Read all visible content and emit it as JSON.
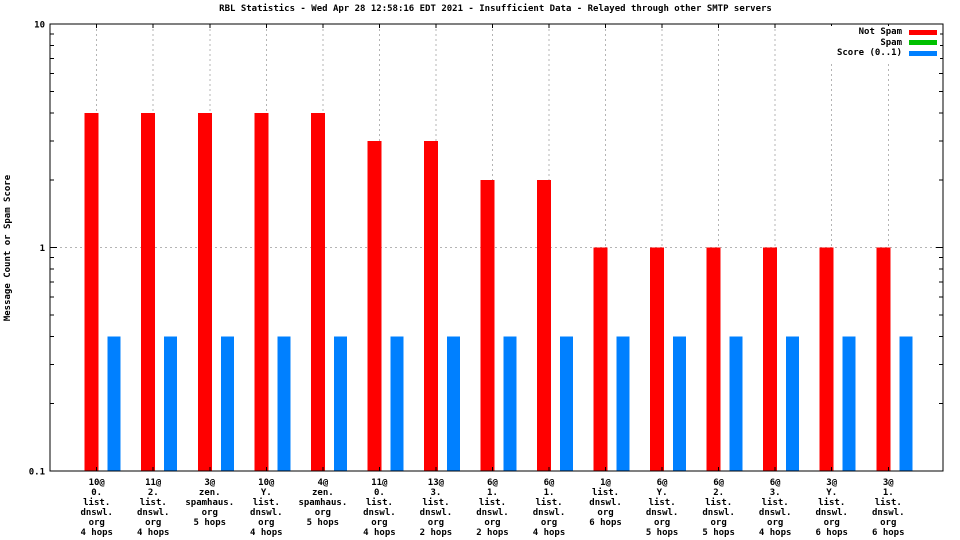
{
  "chart_data": {
    "type": "bar",
    "title": "RBL Statistics - Wed Apr 28 12:58:16 EDT 2021 - Insufficient Data - Relayed through other SMTP servers",
    "xlabel": "",
    "ylabel": "Message Count or Spam Score",
    "y_scale": "log",
    "ylim": [
      0.1,
      10
    ],
    "yticks": [
      0.1,
      1,
      10
    ],
    "ytick_labels": [
      "0.1",
      "1",
      "10"
    ],
    "grid": true,
    "legend_position": "top-right-inside",
    "colors": {
      "background": "#ffffff",
      "axis": "#000000",
      "grid": "#b4b4b4"
    },
    "categories": [
      [
        "10@",
        "0.",
        "list.",
        "dnswl.",
        "org",
        "4 hops"
      ],
      [
        "11@",
        "2.",
        "list.",
        "dnswl.",
        "org",
        "4 hops"
      ],
      [
        "3@",
        "zen.",
        "spamhaus.",
        "org",
        "5 hops"
      ],
      [
        "10@",
        "Y.",
        "list.",
        "dnswl.",
        "org",
        "4 hops"
      ],
      [
        "4@",
        "zen.",
        "spamhaus.",
        "org",
        "5 hops"
      ],
      [
        "11@",
        "0.",
        "list.",
        "dnswl.",
        "org",
        "4 hops"
      ],
      [
        "13@",
        "3.",
        "list.",
        "dnswl.",
        "org",
        "2 hops"
      ],
      [
        "6@",
        "1.",
        "list.",
        "dnswl.",
        "org",
        "2 hops"
      ],
      [
        "6@",
        "1.",
        "list.",
        "dnswl.",
        "org",
        "4 hops"
      ],
      [
        "1@",
        "list.",
        "dnswl.",
        "org",
        "6 hops"
      ],
      [
        "6@",
        "Y.",
        "list.",
        "dnswl.",
        "org",
        "5 hops"
      ],
      [
        "6@",
        "2.",
        "list.",
        "dnswl.",
        "org",
        "5 hops"
      ],
      [
        "6@",
        "3.",
        "list.",
        "dnswl.",
        "org",
        "4 hops"
      ],
      [
        "3@",
        "Y.",
        "list.",
        "dnswl.",
        "org",
        "6 hops"
      ],
      [
        "3@",
        "1.",
        "list.",
        "dnswl.",
        "org",
        "6 hops"
      ]
    ],
    "series": [
      {
        "name": "Not Spam",
        "color": "#ff0000",
        "values": [
          4,
          4,
          4,
          4,
          4,
          3,
          3,
          2,
          2,
          1,
          1,
          1,
          1,
          1,
          1
        ]
      },
      {
        "name": "Spam",
        "color": "#00c000",
        "values": [
          0,
          0,
          0,
          0,
          0,
          0,
          0,
          0,
          0,
          0,
          0,
          0,
          0,
          0,
          0
        ]
      },
      {
        "name": "Score (0..1)",
        "color": "#0080ff",
        "values": [
          0.4,
          0.4,
          0.4,
          0.4,
          0.4,
          0.4,
          0.4,
          0.4,
          0.4,
          0.4,
          0.4,
          0.4,
          0.4,
          0.4,
          0.4
        ]
      }
    ]
  }
}
